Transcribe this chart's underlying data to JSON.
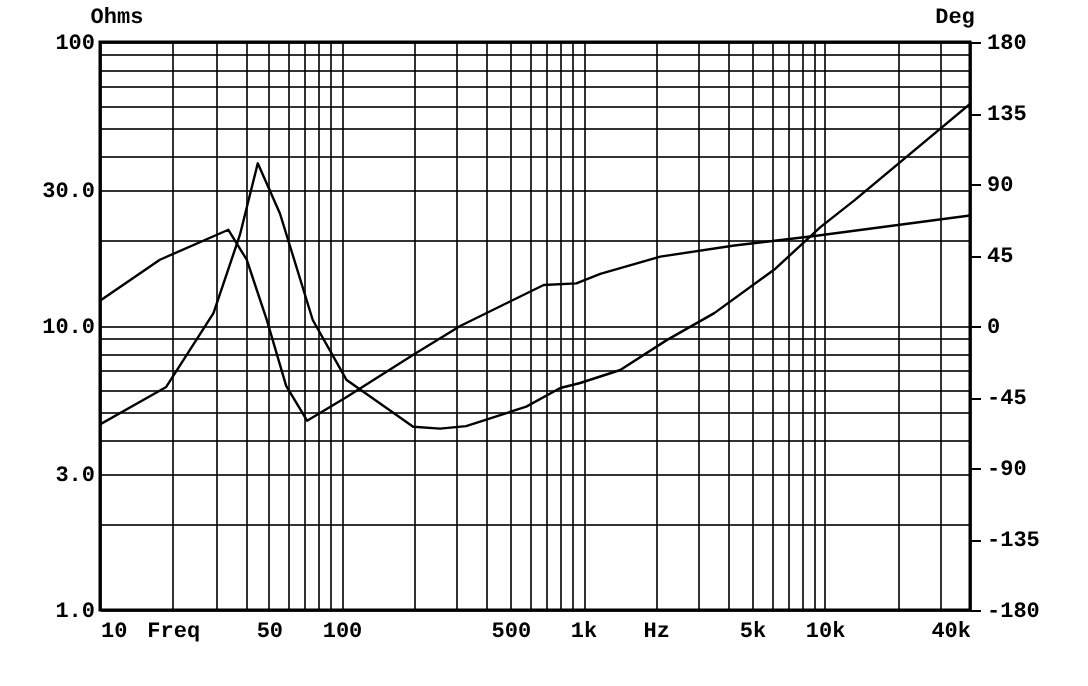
{
  "chart_data": {
    "type": "line",
    "ylabel": "Ohms",
    "y2label": "Deg",
    "series": [
      {
        "color": "#000000",
        "x": [
          10,
          18.8,
          29.5,
          38,
          45,
          55.6,
          76,
          105,
          198,
          256,
          328,
          582,
          805,
          973,
          1426,
          2211,
          3494,
          6195,
          9610,
          13280,
          40000
        ],
        "values": [
          4.5,
          6.1,
          11.1,
          21,
          37.4,
          24.9,
          10.5,
          6.45,
          4.42,
          4.35,
          4.44,
          5.2,
          6.05,
          6.3,
          7.0,
          8.9,
          11.1,
          15.8,
          22.3,
          27.7,
          60.5
        ]
      },
      {
        "color": "#000000",
        "axis": "y2",
        "x": [
          10,
          17.7,
          34,
          40.5,
          49,
          59,
          72,
          105,
          199,
          310,
          687,
          938,
          1178,
          2089,
          4230,
          9080,
          40000
        ],
        "values": [
          16,
          42,
          61,
          42,
          4,
          -38,
          -60,
          -45,
          -18,
          0,
          26,
          27,
          33,
          44,
          51,
          57,
          70
        ]
      }
    ],
    "log": "xy",
    "grid": true,
    "marker": "none",
    "line_style": "solid",
    "xlim": [
      10,
      40000
    ],
    "xticks": [
      10,
      {
        "value": 20,
        "label": "Freq"
      },
      50,
      100,
      500,
      {
        "value": 1000,
        "label": "1k"
      },
      {
        "value": 2000,
        "label": "Hz"
      },
      {
        "value": 5000,
        "label": "5k"
      },
      {
        "value": 10000,
        "label": "10k"
      },
      {
        "value": 40000,
        "label": "40k"
      }
    ],
    "ylim": [
      1,
      100
    ],
    "yticks": [
      {
        "value": 1,
        "label": "1.0"
      },
      {
        "value": 3,
        "label": "3.0"
      },
      {
        "value": 10,
        "label": "10.0"
      },
      {
        "value": 30,
        "label": "30.0"
      },
      100
    ],
    "y2lim": [
      -180,
      180
    ],
    "y2ticks": [
      -180,
      -135,
      -90,
      -45,
      0,
      45,
      90,
      135,
      180
    ]
  }
}
